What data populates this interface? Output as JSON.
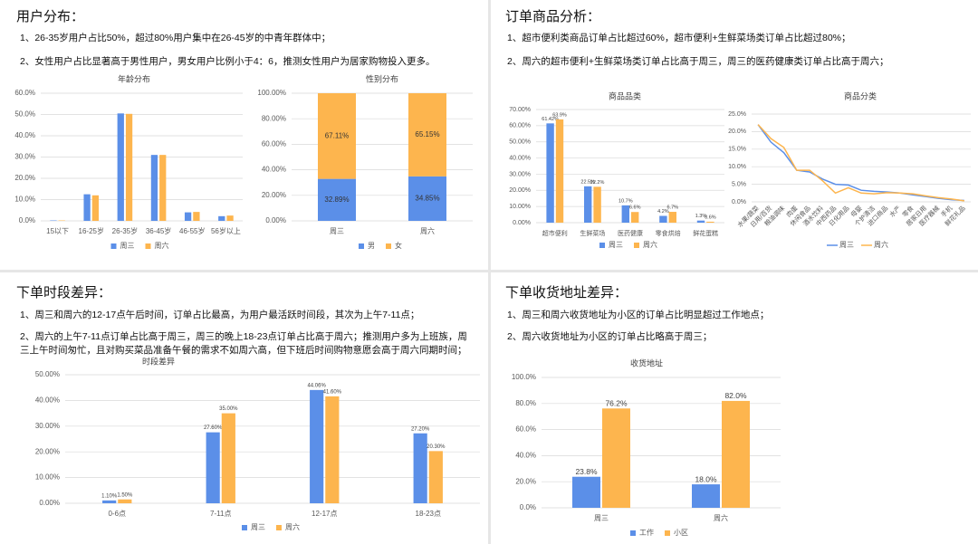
{
  "panels": [
    {
      "title": "用户分布：",
      "notes": [
        "1、26-35岁用户占比50%，超过80%用户集中在26-45岁的中青年群体中；",
        "2、女性用户占比显著高于男性用户，男女用户比例小于4：6，推测女性用户为居家购物投入更多。"
      ]
    },
    {
      "title": "订单商品分析：",
      "notes": [
        "1、超市便利类商品订单占比超过60%，超市便利+生鲜菜场类订单占比超过80%；",
        "2、周六的超市便利+生鲜菜场类订单占比高于周三，周三的医药健康类订单占比高于周六；"
      ]
    },
    {
      "title": "下单时段差异：",
      "notes": [
        "1、周三和周六的12-17点午后时间，订单占比最高，为用户最活跃时间段，其次为上午7-11点；",
        "2、周六的上午7-11点订单占比高于周三，周三的晚上18-23点订单占比高于周六；推测用户多为上班族，周三上午时间匆忙，且对购买菜品准备午餐的需求不如周六高，但下班后时间购物意愿会高于周六同期时间；"
      ]
    },
    {
      "title": "下单收货地址差异：",
      "notes": [
        "1、周三和周六收货地址为小区的订单占比明显超过工作地点；",
        "2、周六收货地址为小区的订单占比略高于周三；"
      ]
    }
  ],
  "chart_data": [
    {
      "type": "bar",
      "title": "年龄分布",
      "categories": [
        "15以下",
        "16-25岁",
        "26-35岁",
        "36-45岁",
        "46-55岁",
        "56岁以上"
      ],
      "series": [
        {
          "name": "周三",
          "color": "#5b8fe8",
          "values": [
            0.2,
            12.5,
            50.5,
            31,
            4,
            2.2
          ]
        },
        {
          "name": "周六",
          "color": "#fdb54e",
          "values": [
            0.2,
            12,
            50.3,
            31,
            4.2,
            2.5
          ]
        }
      ],
      "ylim": [
        0,
        60
      ],
      "yticks": [
        {
          "value": 0,
          "label": "0.0%"
        },
        {
          "value": 10,
          "label": "10.0%"
        },
        {
          "value": 20,
          "label": "20.0%"
        },
        {
          "value": 30,
          "label": "30.0%"
        },
        {
          "value": 40,
          "label": "40.0%"
        },
        {
          "value": 50,
          "label": "50.0%"
        },
        {
          "value": 60,
          "label": "60.0%"
        }
      ],
      "grid": true
    },
    {
      "type": "bar",
      "stacked": true,
      "title": "性别分布",
      "categories": [
        "周三",
        "周六"
      ],
      "series": [
        {
          "name": "男",
          "color": "#5b8fe8",
          "values": [
            32.89,
            34.85
          ],
          "value_labels": [
            "32.89%",
            "34.85%"
          ]
        },
        {
          "name": "女",
          "color": "#fdb54e",
          "values": [
            67.11,
            65.15
          ],
          "value_labels": [
            "67.11%",
            "65.15%"
          ]
        }
      ],
      "ylim": [
        0,
        100
      ],
      "yticks": [
        {
          "value": 0,
          "label": "0.00%"
        },
        {
          "value": 20,
          "label": "20.00%"
        },
        {
          "value": 40,
          "label": "40.00%"
        },
        {
          "value": 60,
          "label": "60.00%"
        },
        {
          "value": 80,
          "label": "80.00%"
        },
        {
          "value": 100,
          "label": "100.00%"
        }
      ],
      "grid": true
    },
    {
      "type": "bar",
      "title": "商品品类",
      "categories": [
        "超市便利",
        "生鲜菜场",
        "医药健康",
        "零食烘焙",
        "鲜花蛋糕"
      ],
      "series": [
        {
          "name": "周三",
          "color": "#5b8fe8",
          "values": [
            61.42,
            22.5,
            10.7,
            4.2,
            1.3
          ],
          "value_labels": [
            "61.42%",
            "22.5%",
            "10.7%",
            "4.2%",
            "1.3%"
          ]
        },
        {
          "name": "周六",
          "color": "#fdb54e",
          "values": [
            63.9,
            22.2,
            6.6,
            6.7,
            0.6
          ],
          "value_labels": [
            "63.9%",
            "22.2%",
            "6.6%",
            "6.7%",
            "0.6%"
          ]
        }
      ],
      "ylim": [
        0,
        70
      ],
      "yticks": [
        {
          "value": 0,
          "label": "0.00%"
        },
        {
          "value": 10,
          "label": "10.00%"
        },
        {
          "value": 20,
          "label": "20.00%"
        },
        {
          "value": 30,
          "label": "30.00%"
        },
        {
          "value": 40,
          "label": "40.00%"
        },
        {
          "value": 50,
          "label": "50.00%"
        },
        {
          "value": 60,
          "label": "60.00%"
        },
        {
          "value": 70,
          "label": "70.00%"
        }
      ],
      "grid": true
    },
    {
      "type": "line",
      "title": "商品分类",
      "categories": [
        "水果/蔬菜",
        "日用/百货",
        "粮油调味",
        "肉蛋",
        "休闲食品",
        "酒水饮料",
        "中西药品",
        "日化用品",
        "母婴",
        "个护清洁",
        "进口商品",
        "水产",
        "零食",
        "居家日用",
        "医疗器械",
        "手机",
        "鲜花礼品"
      ],
      "series": [
        {
          "name": "周三",
          "color": "#5b8fe8",
          "values": [
            22,
            17,
            14,
            9,
            8.5,
            6.5,
            5,
            4.8,
            3.3,
            3,
            2.8,
            2.5,
            2,
            1.5,
            1,
            0.6,
            0.4
          ]
        },
        {
          "name": "周六",
          "color": "#fdb54e",
          "values": [
            22,
            18,
            15.5,
            9,
            9,
            6,
            2.5,
            4,
            2.5,
            2.3,
            2.6,
            2.5,
            2.3,
            1.7,
            1.2,
            0.8,
            0.3
          ]
        }
      ],
      "ylim": [
        0,
        25
      ],
      "yticks": [
        {
          "value": 0,
          "label": "0.0%"
        },
        {
          "value": 5,
          "label": "5.0%"
        },
        {
          "value": 10,
          "label": "10.0%"
        },
        {
          "value": 15,
          "label": "15.0%"
        },
        {
          "value": 20,
          "label": "20.0%"
        },
        {
          "value": 25,
          "label": "25.0%"
        }
      ],
      "grid": true
    },
    {
      "type": "bar",
      "title": "时段差异",
      "categories": [
        "0-6点",
        "7-11点",
        "12-17点",
        "18-23点"
      ],
      "series": [
        {
          "name": "周三",
          "color": "#5b8fe8",
          "values": [
            1.1,
            27.6,
            44.06,
            27.2
          ],
          "value_labels": [
            "1.10%",
            "27.60%",
            "44.06%",
            "27.20%"
          ]
        },
        {
          "name": "周六",
          "color": "#fdb54e",
          "values": [
            1.5,
            35,
            41.6,
            20.3
          ],
          "value_labels": [
            "1.50%",
            "35.00%",
            "41.60%",
            "20.30%"
          ]
        }
      ],
      "ylim": [
        0,
        50
      ],
      "yticks": [
        {
          "value": 0,
          "label": "0.00%"
        },
        {
          "value": 10,
          "label": "10.00%"
        },
        {
          "value": 20,
          "label": "20.00%"
        },
        {
          "value": 30,
          "label": "30.00%"
        },
        {
          "value": 40,
          "label": "40.00%"
        },
        {
          "value": 50,
          "label": "50.00%"
        }
      ],
      "grid": true
    },
    {
      "type": "bar",
      "title": "收货地址",
      "categories": [
        "周三",
        "周六"
      ],
      "series": [
        {
          "name": "工作",
          "color": "#5b8fe8",
          "values": [
            23.8,
            18.0
          ],
          "value_labels": [
            "23.8%",
            "18.0%"
          ]
        },
        {
          "name": "小区",
          "color": "#fdb54e",
          "values": [
            76.2,
            82.0
          ],
          "value_labels": [
            "76.2%",
            "82.0%"
          ]
        }
      ],
      "ylim": [
        0,
        100
      ],
      "yticks": [
        {
          "value": 0,
          "label": "0.0%"
        },
        {
          "value": 20,
          "label": "20.0%"
        },
        {
          "value": 40,
          "label": "40.0%"
        },
        {
          "value": 60,
          "label": "60.0%"
        },
        {
          "value": 80,
          "label": "80.0%"
        },
        {
          "value": 100,
          "label": "100.0%"
        }
      ],
      "grid": true
    }
  ]
}
